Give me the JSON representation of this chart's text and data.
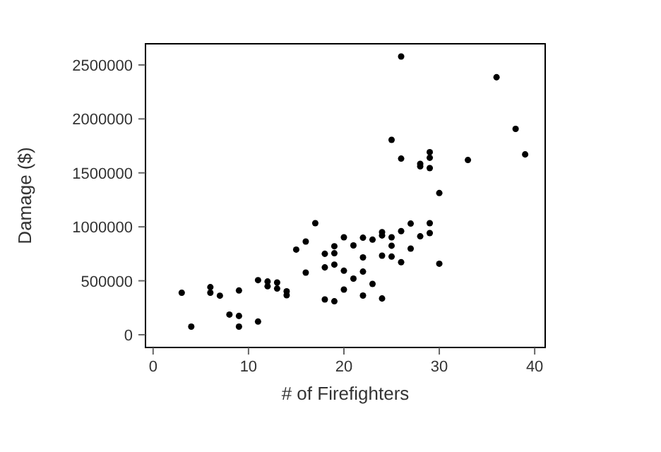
{
  "chart_data": {
    "type": "scatter",
    "xlabel": "# of Firefighters",
    "ylabel": "Damage ($)",
    "xlim": [
      -0.8,
      41.1
    ],
    "ylim": [
      -118000,
      2696000
    ],
    "xticks": [
      0,
      10,
      20,
      30,
      40
    ],
    "yticks": [
      0,
      500000,
      1000000,
      1500000,
      2000000,
      2500000
    ],
    "grid": false,
    "marker": "circle",
    "series": [
      {
        "color": "#000000",
        "x": [
          3,
          4,
          6,
          6,
          7,
          9,
          8,
          9,
          9,
          11,
          11,
          12,
          12,
          13,
          13,
          14,
          14,
          15,
          16,
          16,
          17,
          18,
          18,
          19,
          19,
          19,
          20,
          20,
          18,
          19,
          20,
          26,
          36,
          38,
          39,
          25,
          26,
          29,
          29,
          28,
          28,
          29,
          33,
          30,
          30,
          21,
          22,
          23,
          24,
          24,
          25,
          25,
          26,
          27,
          28,
          29,
          29,
          27,
          26,
          22,
          24,
          25,
          21,
          22,
          23,
          22,
          24
        ],
        "values": [
          389000,
          75000,
          441000,
          389000,
          362000,
          410000,
          187000,
          174000,
          75000,
          122000,
          506000,
          493000,
          449000,
          484000,
          428000,
          402000,
          366000,
          789000,
          864000,
          576000,
          1034000,
          750000,
          624000,
          820000,
          755000,
          650000,
          903000,
          593000,
          327000,
          310000,
          419000,
          2578000,
          2386000,
          1907000,
          1671000,
          1806000,
          1632000,
          1692000,
          1640000,
          1584000,
          1561000,
          1544000,
          1619000,
          1313000,
          658000,
          828000,
          899000,
          881000,
          951000,
          920000,
          903000,
          825000,
          960000,
          1030000,
          912000,
          1034000,
          942000,
          798000,
          672000,
          716000,
          733000,
          724000,
          520000,
          585000,
          471000,
          363000,
          336000
        ]
      }
    ]
  }
}
